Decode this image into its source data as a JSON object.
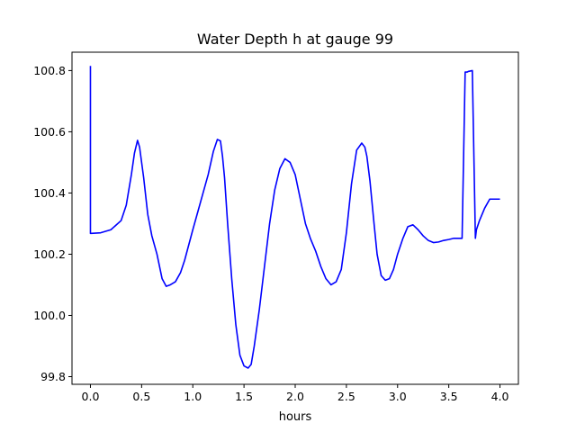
{
  "chart_data": {
    "type": "line",
    "title": "Water Depth h at gauge 99",
    "xlabel": "hours",
    "ylabel": "",
    "xlim": [
      -0.18,
      4.18
    ],
    "ylim": [
      99.775,
      100.86
    ],
    "x_ticks": [
      0.0,
      0.5,
      1.0,
      1.5,
      2.0,
      2.5,
      3.0,
      3.5,
      4.0
    ],
    "x_tick_labels": [
      "0.0",
      "0.5",
      "1.0",
      "1.5",
      "2.0",
      "2.5",
      "3.0",
      "3.5",
      "4.0"
    ],
    "y_ticks": [
      99.8,
      100.0,
      100.2,
      100.4,
      100.6,
      100.8
    ],
    "y_tick_labels": [
      "99.8",
      "100.0",
      "100.2",
      "100.4",
      "100.6",
      "100.8"
    ],
    "grid": false,
    "series": [
      {
        "color": "#0000ff",
        "x": [
          0.0,
          0.0,
          0.01,
          0.1,
          0.2,
          0.3,
          0.35,
          0.4,
          0.43,
          0.46,
          0.48,
          0.52,
          0.56,
          0.6,
          0.65,
          0.7,
          0.74,
          0.78,
          0.83,
          0.88,
          0.92,
          0.96,
          1.0,
          1.05,
          1.1,
          1.15,
          1.2,
          1.24,
          1.27,
          1.29,
          1.31,
          1.34,
          1.38,
          1.42,
          1.46,
          1.5,
          1.54,
          1.57,
          1.6,
          1.65,
          1.7,
          1.75,
          1.8,
          1.85,
          1.9,
          1.95,
          2.0,
          2.05,
          2.1,
          2.15,
          2.2,
          2.25,
          2.3,
          2.35,
          2.4,
          2.45,
          2.5,
          2.55,
          2.6,
          2.65,
          2.68,
          2.7,
          2.73,
          2.77,
          2.8,
          2.84,
          2.88,
          2.92,
          2.96,
          3.0,
          3.05,
          3.1,
          3.15,
          3.2,
          3.25,
          3.3,
          3.35,
          3.4,
          3.45,
          3.5,
          3.55,
          3.6,
          3.63,
          3.66,
          3.68,
          3.69,
          3.69,
          3.73,
          3.76,
          3.76,
          3.77,
          3.8,
          3.85,
          3.9,
          3.95,
          4.0
        ],
        "y": [
          100.815,
          100.268,
          100.268,
          100.27,
          100.28,
          100.31,
          100.36,
          100.46,
          100.53,
          100.572,
          100.55,
          100.45,
          100.33,
          100.26,
          100.2,
          100.12,
          100.095,
          100.1,
          100.11,
          100.14,
          100.18,
          100.23,
          100.28,
          100.34,
          100.4,
          100.46,
          100.535,
          100.575,
          100.57,
          100.52,
          100.45,
          100.3,
          100.12,
          99.97,
          99.87,
          99.835,
          99.828,
          99.84,
          99.9,
          100.02,
          100.16,
          100.3,
          100.41,
          100.48,
          100.512,
          100.5,
          100.46,
          100.38,
          100.3,
          100.25,
          100.21,
          100.16,
          100.12,
          100.1,
          100.11,
          100.15,
          100.27,
          100.43,
          100.54,
          100.563,
          100.55,
          100.52,
          100.44,
          100.3,
          100.2,
          100.13,
          100.115,
          100.12,
          100.15,
          100.2,
          100.25,
          100.29,
          100.296,
          100.28,
          100.26,
          100.245,
          100.238,
          100.24,
          100.245,
          100.248,
          100.252,
          100.252,
          100.252,
          100.795,
          100.795,
          100.797,
          100.797,
          100.8,
          100.252,
          100.252,
          100.28,
          100.31,
          100.35,
          100.38,
          100.38,
          100.38
        ]
      }
    ]
  }
}
